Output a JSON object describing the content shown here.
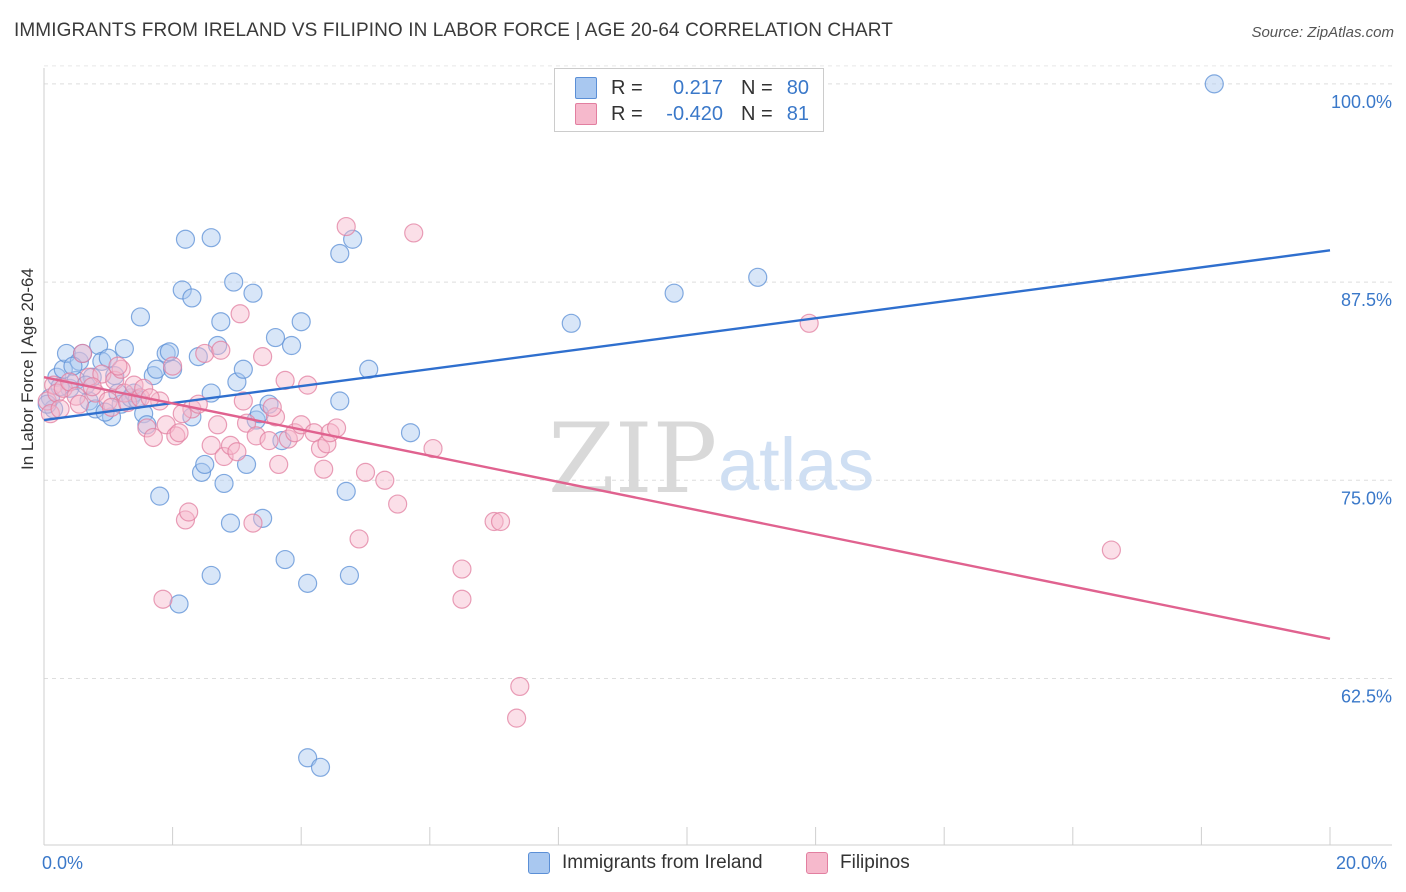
{
  "header": {
    "title": "IMMIGRANTS FROM IRELAND VS FILIPINO IN LABOR FORCE | AGE 20-64 CORRELATION CHART",
    "source": "Source: ZipAtlas.com"
  },
  "legend": {
    "r_label": "R =",
    "n_label": "N =",
    "rows": [
      {
        "r": "0.217",
        "n": "80",
        "color": "#a9c8f0",
        "stroke": "#5b8fd6"
      },
      {
        "r": "-0.420",
        "n": "81",
        "color": "#f6b9cc",
        "stroke": "#e27fa0"
      }
    ]
  },
  "bottom_legend": {
    "items": [
      "Immigrants from Ireland",
      "Filipinos"
    ]
  },
  "watermark": {
    "zip": "ZIP",
    "atlas": "atlas"
  },
  "chart_data": {
    "type": "scatter",
    "xlabel": "",
    "ylabel": "In Labor Force | Age 20-64",
    "xlim": [
      0,
      20
    ],
    "ylim": [
      52,
      101
    ],
    "x_ticks": [
      "0.0%",
      "20.0%"
    ],
    "y_ticks": [
      {
        "value": 62.5,
        "label": "62.5%"
      },
      {
        "value": 75.0,
        "label": "75.0%"
      },
      {
        "value": 87.5,
        "label": "87.5%"
      },
      {
        "value": 100.0,
        "label": "100.0%"
      }
    ],
    "series": [
      {
        "name": "Immigrants from Ireland",
        "color": "#5b8fd6",
        "fill": "#a9c8f0",
        "trend": {
          "x": [
            0,
            20
          ],
          "y": [
            78.8,
            89.5
          ]
        },
        "points": [
          [
            0.1,
            80.2
          ],
          [
            0.15,
            79.5
          ],
          [
            0.2,
            81.5
          ],
          [
            0.3,
            82.0
          ],
          [
            0.35,
            83.0
          ],
          [
            0.4,
            80.8
          ],
          [
            0.5,
            81.3
          ],
          [
            0.55,
            82.5
          ],
          [
            0.6,
            83.0
          ],
          [
            0.7,
            80.0
          ],
          [
            0.75,
            81.5
          ],
          [
            0.8,
            79.5
          ],
          [
            0.85,
            83.5
          ],
          [
            0.9,
            82.5
          ],
          [
            1.0,
            82.7
          ],
          [
            1.05,
            79.0
          ],
          [
            1.1,
            81.6
          ],
          [
            1.15,
            80.5
          ],
          [
            1.2,
            79.8
          ],
          [
            1.25,
            83.3
          ],
          [
            1.35,
            80.2
          ],
          [
            1.4,
            80.5
          ],
          [
            1.5,
            85.3
          ],
          [
            1.55,
            79.2
          ],
          [
            1.6,
            78.5
          ],
          [
            1.7,
            81.6
          ],
          [
            1.75,
            82.0
          ],
          [
            1.8,
            74.0
          ],
          [
            1.9,
            83.0
          ],
          [
            1.95,
            83.1
          ],
          [
            2.0,
            82.0
          ],
          [
            2.1,
            67.2
          ],
          [
            2.15,
            87.0
          ],
          [
            2.2,
            90.2
          ],
          [
            2.3,
            79.0
          ],
          [
            2.3,
            86.5
          ],
          [
            2.4,
            82.8
          ],
          [
            2.45,
            75.5
          ],
          [
            2.5,
            76.0
          ],
          [
            2.6,
            90.3
          ],
          [
            2.6,
            69.0
          ],
          [
            2.6,
            80.5
          ],
          [
            2.7,
            83.5
          ],
          [
            2.75,
            85.0
          ],
          [
            2.8,
            74.8
          ],
          [
            2.9,
            72.3
          ],
          [
            2.95,
            87.5
          ],
          [
            3.0,
            81.2
          ],
          [
            3.1,
            82.0
          ],
          [
            3.15,
            76.0
          ],
          [
            3.25,
            86.8
          ],
          [
            3.3,
            78.8
          ],
          [
            3.35,
            79.2
          ],
          [
            3.4,
            72.6
          ],
          [
            3.5,
            79.8
          ],
          [
            3.6,
            84.0
          ],
          [
            3.7,
            77.5
          ],
          [
            3.75,
            70.0
          ],
          [
            3.85,
            83.5
          ],
          [
            4.0,
            85.0
          ],
          [
            4.1,
            68.5
          ],
          [
            4.1,
            57.5
          ],
          [
            4.3,
            56.9
          ],
          [
            4.6,
            80.0
          ],
          [
            4.6,
            89.3
          ],
          [
            4.7,
            74.3
          ],
          [
            4.75,
            69.0
          ],
          [
            4.8,
            90.2
          ],
          [
            5.05,
            82.0
          ],
          [
            5.7,
            78.0
          ],
          [
            8.2,
            84.9
          ],
          [
            9.8,
            86.8
          ],
          [
            11.1,
            87.8
          ],
          [
            18.2,
            100.0
          ],
          [
            0.05,
            79.8
          ],
          [
            0.25,
            80.9
          ],
          [
            0.45,
            82.2
          ],
          [
            0.65,
            81.0
          ],
          [
            0.95,
            79.3
          ],
          [
            1.45,
            80.1
          ]
        ]
      },
      {
        "name": "Filipinos",
        "color": "#e27fa0",
        "fill": "#f6b9cc",
        "trend": {
          "x": [
            0,
            20
          ],
          "y": [
            81.5,
            65.0
          ]
        },
        "points": [
          [
            0.05,
            80.0
          ],
          [
            0.1,
            79.2
          ],
          [
            0.15,
            81.0
          ],
          [
            0.2,
            80.5
          ],
          [
            0.3,
            80.8
          ],
          [
            0.4,
            81.2
          ],
          [
            0.5,
            80.3
          ],
          [
            0.6,
            83.0
          ],
          [
            0.7,
            81.5
          ],
          [
            0.8,
            80.5
          ],
          [
            0.9,
            81.7
          ],
          [
            1.0,
            80.0
          ],
          [
            1.05,
            79.6
          ],
          [
            1.1,
            81.3
          ],
          [
            1.2,
            82.0
          ],
          [
            1.25,
            80.5
          ],
          [
            1.3,
            79.9
          ],
          [
            1.4,
            81.0
          ],
          [
            1.5,
            80.2
          ],
          [
            1.55,
            80.8
          ],
          [
            1.6,
            78.3
          ],
          [
            1.7,
            77.7
          ],
          [
            1.8,
            80.0
          ],
          [
            1.85,
            67.5
          ],
          [
            1.9,
            78.5
          ],
          [
            2.0,
            82.2
          ],
          [
            2.05,
            77.8
          ],
          [
            2.1,
            78.0
          ],
          [
            2.2,
            72.5
          ],
          [
            2.25,
            73.0
          ],
          [
            2.3,
            79.5
          ],
          [
            2.4,
            79.8
          ],
          [
            2.5,
            83.0
          ],
          [
            2.6,
            77.2
          ],
          [
            2.7,
            78.5
          ],
          [
            2.75,
            83.2
          ],
          [
            2.8,
            76.5
          ],
          [
            2.9,
            77.2
          ],
          [
            3.0,
            76.8
          ],
          [
            3.05,
            85.5
          ],
          [
            3.1,
            80.0
          ],
          [
            3.15,
            78.6
          ],
          [
            3.25,
            72.3
          ],
          [
            3.3,
            77.8
          ],
          [
            3.4,
            82.8
          ],
          [
            3.5,
            77.5
          ],
          [
            3.6,
            79.0
          ],
          [
            3.65,
            76.0
          ],
          [
            3.75,
            81.3
          ],
          [
            3.8,
            77.6
          ],
          [
            3.9,
            78.0
          ],
          [
            4.0,
            78.5
          ],
          [
            4.1,
            81.0
          ],
          [
            4.2,
            78.0
          ],
          [
            4.3,
            77.0
          ],
          [
            4.35,
            75.7
          ],
          [
            4.4,
            77.3
          ],
          [
            4.45,
            78.0
          ],
          [
            4.55,
            78.3
          ],
          [
            4.7,
            91.0
          ],
          [
            4.9,
            71.3
          ],
          [
            5.0,
            75.5
          ],
          [
            5.3,
            75.0
          ],
          [
            5.5,
            73.5
          ],
          [
            5.75,
            90.6
          ],
          [
            6.05,
            77.0
          ],
          [
            6.5,
            69.4
          ],
          [
            6.5,
            67.5
          ],
          [
            7.0,
            72.4
          ],
          [
            7.1,
            72.4
          ],
          [
            7.4,
            62.0
          ],
          [
            7.35,
            60.0
          ],
          [
            11.9,
            84.9
          ],
          [
            16.6,
            70.6
          ],
          [
            0.25,
            79.5
          ],
          [
            0.55,
            79.8
          ],
          [
            0.75,
            80.9
          ],
          [
            1.15,
            82.2
          ],
          [
            1.65,
            80.2
          ],
          [
            2.15,
            79.2
          ],
          [
            3.55,
            79.6
          ]
        ]
      }
    ],
    "grid": true,
    "legend_position": "top-center"
  }
}
